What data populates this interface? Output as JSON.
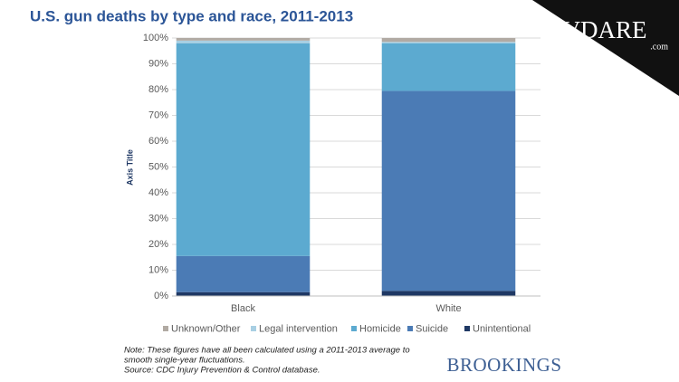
{
  "chart_data": {
    "type": "stacked_bar",
    "title": "U.S. gun deaths by type and race, 2011-2013",
    "y_axis_title": "Axis Title",
    "categories": [
      "Black",
      "White"
    ],
    "series": [
      {
        "name": "Unintentional",
        "color": "#1f3864",
        "values": [
          1.5,
          2
        ]
      },
      {
        "name": "Suicide",
        "color": "#4b7bb5",
        "values": [
          14,
          77.5
        ]
      },
      {
        "name": "Homicide",
        "color": "#5caad0",
        "values": [
          82.5,
          18.5
        ]
      },
      {
        "name": "Legal intervention",
        "color": "#a8cfe3",
        "values": [
          1,
          0.5
        ]
      },
      {
        "name": "Unknown/Other",
        "color": "#b1aaa3",
        "values": [
          1,
          1.5
        ]
      }
    ],
    "ylim": [
      0,
      100
    ],
    "yticks": [
      {
        "value": 0,
        "label": "0%"
      },
      {
        "value": 10,
        "label": "10%"
      },
      {
        "value": 20,
        "label": "20%"
      },
      {
        "value": 30,
        "label": "30%"
      },
      {
        "value": 40,
        "label": "40%"
      },
      {
        "value": 50,
        "label": "50%"
      },
      {
        "value": 60,
        "label": "60%"
      },
      {
        "value": 70,
        "label": "70%"
      },
      {
        "value": 80,
        "label": "80%"
      },
      {
        "value": 90,
        "label": "90%"
      },
      {
        "value": 100,
        "label": "100%"
      }
    ],
    "grid": true,
    "note": [
      "Note: These figures have all been calculated using a 2011-2013 average to",
      "smooth single-year fluctuations.",
      "Source: CDC Injury Prevention & Control database."
    ],
    "logo": "BROOKINGS",
    "watermark": {
      "text": "VDARE",
      "suffix": ".com"
    }
  }
}
